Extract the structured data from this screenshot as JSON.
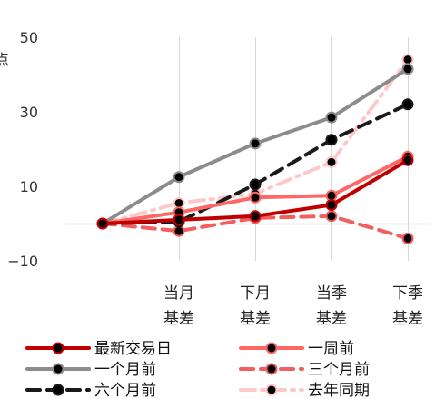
{
  "chart_data": {
    "type": "line",
    "categories": [
      "",
      "当月基差",
      "下月基差",
      "当季基差",
      "下季基差"
    ],
    "category_lines": [
      [
        "",
        ""
      ],
      [
        "当月",
        "基差"
      ],
      [
        "下月",
        "基差"
      ],
      [
        "当季",
        "基差"
      ],
      [
        "下季",
        "基差"
      ]
    ],
    "ylim": [
      -10,
      50
    ],
    "yticks": [
      50,
      30,
      10,
      -10
    ],
    "ytick_labels": [
      "50",
      "30",
      "10",
      "−10"
    ],
    "ylabel": "点",
    "grid": "vertical",
    "legend_position": "bottom",
    "series": [
      {
        "name": "最新交易日",
        "values": [
          0,
          1,
          2,
          5,
          17
        ],
        "color": "#c00000",
        "dash": "solid"
      },
      {
        "name": "一周前",
        "values": [
          0,
          3,
          7,
          7.5,
          18
        ],
        "color": "#ff6666",
        "dash": "solid"
      },
      {
        "name": "一个月前",
        "values": [
          0,
          12.5,
          21.5,
          28.5,
          41.5
        ],
        "color": "#8c8c8c",
        "dash": "solid"
      },
      {
        "name": "三个月前",
        "values": [
          0,
          -2,
          1.5,
          2,
          -4
        ],
        "color": "#f06060",
        "dash": "dash"
      },
      {
        "name": "六个月前",
        "values": [
          0,
          0.5,
          10.5,
          22.5,
          32
        ],
        "color": "#1a1a1a",
        "dash": "dash"
      },
      {
        "name": "去年同期",
        "values": [
          0,
          5.5,
          8,
          16.5,
          44
        ],
        "color": "#ffc8c8",
        "dash": "dashdot"
      }
    ]
  }
}
